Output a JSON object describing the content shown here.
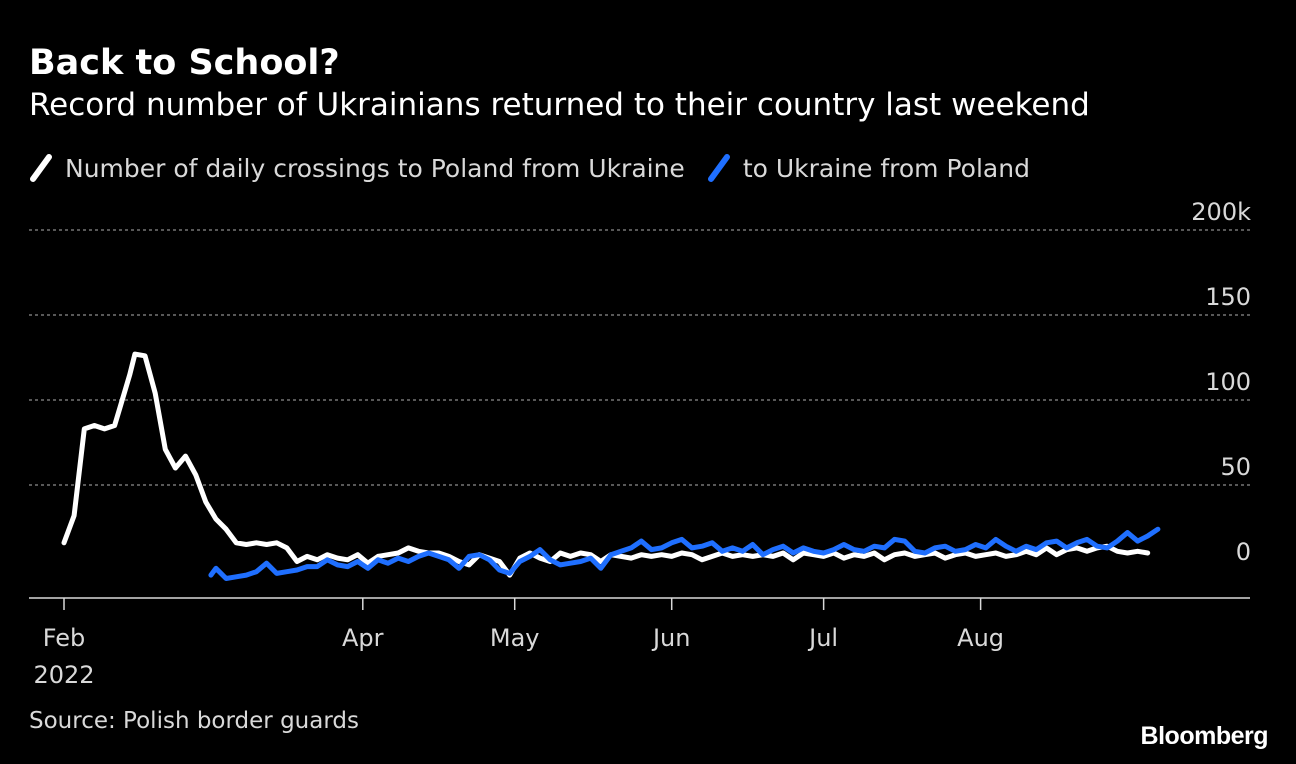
{
  "header": {
    "title": "Back to School?",
    "subtitle": "Record number of Ukrainians returned to their country last weekend"
  },
  "legend": {
    "items": [
      {
        "label": "Number of daily crossings to Poland from Ukraine",
        "color": "#ffffff"
      },
      {
        "label": "to Ukraine from Poland",
        "color": "#1f6fff"
      }
    ]
  },
  "footer": {
    "source": "Source: Polish border guards",
    "brand": "Bloomberg"
  },
  "chart_data": {
    "type": "line",
    "x_type": "date",
    "xlim": [
      "2022-02-01",
      "2022-09-07"
    ],
    "ylim": [
      0,
      200
    ],
    "grid": true,
    "y_ticks": [
      {
        "value": 0,
        "label": "0"
      },
      {
        "value": 50,
        "label": "50"
      },
      {
        "value": 100,
        "label": "100"
      },
      {
        "value": 150,
        "label": "150"
      },
      {
        "value": 200,
        "label": "200k"
      }
    ],
    "x_ticks": [
      {
        "date": "2022-02-01",
        "label": "Feb",
        "sublabel": "2022"
      },
      {
        "date": "2022-04-01",
        "label": "Apr"
      },
      {
        "date": "2022-05-01",
        "label": "May"
      },
      {
        "date": "2022-06-01",
        "label": "Jun"
      },
      {
        "date": "2022-07-01",
        "label": "Jul"
      },
      {
        "date": "2022-08-01",
        "label": "Aug"
      }
    ],
    "series": [
      {
        "name": "Number of daily crossings to Poland from Ukraine",
        "color": "#ffffff",
        "points": [
          [
            "2022-02-01",
            16
          ],
          [
            "2022-02-03",
            32
          ],
          [
            "2022-02-05",
            83
          ],
          [
            "2022-02-07",
            85
          ],
          [
            "2022-02-09",
            83
          ],
          [
            "2022-02-11",
            85
          ],
          [
            "2022-02-12",
            95
          ],
          [
            "2022-02-14",
            115
          ],
          [
            "2022-02-15",
            127
          ],
          [
            "2022-02-17",
            126
          ],
          [
            "2022-02-19",
            104
          ],
          [
            "2022-02-21",
            71
          ],
          [
            "2022-02-23",
            60
          ],
          [
            "2022-02-25",
            67
          ],
          [
            "2022-02-27",
            56
          ],
          [
            "2022-03-01",
            40
          ],
          [
            "2022-03-03",
            30
          ],
          [
            "2022-03-05",
            24
          ],
          [
            "2022-03-07",
            16
          ],
          [
            "2022-03-09",
            15
          ],
          [
            "2022-03-11",
            16
          ],
          [
            "2022-03-13",
            15
          ],
          [
            "2022-03-15",
            16
          ],
          [
            "2022-03-17",
            13
          ],
          [
            "2022-03-19",
            5
          ],
          [
            "2022-03-21",
            8
          ],
          [
            "2022-03-23",
            6
          ],
          [
            "2022-03-25",
            9
          ],
          [
            "2022-03-27",
            7
          ],
          [
            "2022-03-29",
            6
          ],
          [
            "2022-03-31",
            9
          ],
          [
            "2022-04-02",
            4
          ],
          [
            "2022-04-04",
            8
          ],
          [
            "2022-04-06",
            9
          ],
          [
            "2022-04-08",
            10
          ],
          [
            "2022-04-10",
            13
          ],
          [
            "2022-04-12",
            11
          ],
          [
            "2022-04-14",
            10
          ],
          [
            "2022-04-16",
            10
          ],
          [
            "2022-04-18",
            8
          ],
          [
            "2022-04-20",
            5
          ],
          [
            "2022-04-22",
            3
          ],
          [
            "2022-04-24",
            9
          ],
          [
            "2022-04-26",
            7
          ],
          [
            "2022-04-28",
            5
          ],
          [
            "2022-04-30",
            -3
          ],
          [
            "2022-05-02",
            7
          ],
          [
            "2022-05-04",
            10
          ],
          [
            "2022-05-06",
            7
          ],
          [
            "2022-05-08",
            5
          ],
          [
            "2022-05-10",
            10
          ],
          [
            "2022-05-12",
            8
          ],
          [
            "2022-05-14",
            10
          ],
          [
            "2022-05-16",
            9
          ],
          [
            "2022-05-18",
            5
          ],
          [
            "2022-05-20",
            9
          ],
          [
            "2022-05-22",
            8
          ],
          [
            "2022-05-24",
            7
          ],
          [
            "2022-05-26",
            9
          ],
          [
            "2022-05-28",
            8
          ],
          [
            "2022-05-30",
            9
          ],
          [
            "2022-06-01",
            8
          ],
          [
            "2022-06-03",
            10
          ],
          [
            "2022-06-05",
            9
          ],
          [
            "2022-06-07",
            6
          ],
          [
            "2022-06-09",
            8
          ],
          [
            "2022-06-11",
            10
          ],
          [
            "2022-06-13",
            8
          ],
          [
            "2022-06-15",
            9
          ],
          [
            "2022-06-17",
            8
          ],
          [
            "2022-06-19",
            9
          ],
          [
            "2022-06-21",
            8
          ],
          [
            "2022-06-23",
            10
          ],
          [
            "2022-06-25",
            6
          ],
          [
            "2022-06-27",
            10
          ],
          [
            "2022-06-29",
            9
          ],
          [
            "2022-07-01",
            8
          ],
          [
            "2022-07-03",
            10
          ],
          [
            "2022-07-05",
            7
          ],
          [
            "2022-07-07",
            9
          ],
          [
            "2022-07-09",
            8
          ],
          [
            "2022-07-11",
            10
          ],
          [
            "2022-07-13",
            6
          ],
          [
            "2022-07-15",
            9
          ],
          [
            "2022-07-17",
            10
          ],
          [
            "2022-07-19",
            8
          ],
          [
            "2022-07-21",
            9
          ],
          [
            "2022-07-23",
            10
          ],
          [
            "2022-07-25",
            7
          ],
          [
            "2022-07-27",
            9
          ],
          [
            "2022-07-29",
            10
          ],
          [
            "2022-07-31",
            8
          ],
          [
            "2022-08-02",
            9
          ],
          [
            "2022-08-04",
            10
          ],
          [
            "2022-08-06",
            8
          ],
          [
            "2022-08-08",
            9
          ],
          [
            "2022-08-10",
            11
          ],
          [
            "2022-08-12",
            9
          ],
          [
            "2022-08-14",
            13
          ],
          [
            "2022-08-16",
            9
          ],
          [
            "2022-08-18",
            12
          ],
          [
            "2022-08-20",
            13
          ],
          [
            "2022-08-22",
            11
          ],
          [
            "2022-08-24",
            13
          ],
          [
            "2022-08-26",
            14
          ],
          [
            "2022-08-28",
            11
          ],
          [
            "2022-08-30",
            10
          ],
          [
            "2022-09-01",
            11
          ],
          [
            "2022-09-03",
            10
          ]
        ]
      },
      {
        "name": "to Ukraine from Poland",
        "color": "#1f6fff",
        "points": [
          [
            "2022-03-02",
            -3
          ],
          [
            "2022-03-03",
            1
          ],
          [
            "2022-03-05",
            -5
          ],
          [
            "2022-03-07",
            -4
          ],
          [
            "2022-03-09",
            -3
          ],
          [
            "2022-03-11",
            -1
          ],
          [
            "2022-03-13",
            4
          ],
          [
            "2022-03-15",
            -2
          ],
          [
            "2022-03-17",
            -1
          ],
          [
            "2022-03-19",
            0
          ],
          [
            "2022-03-21",
            2
          ],
          [
            "2022-03-23",
            2
          ],
          [
            "2022-03-25",
            6
          ],
          [
            "2022-03-27",
            3
          ],
          [
            "2022-03-29",
            2
          ],
          [
            "2022-03-31",
            5
          ],
          [
            "2022-04-02",
            1
          ],
          [
            "2022-04-04",
            6
          ],
          [
            "2022-04-06",
            4
          ],
          [
            "2022-04-08",
            7
          ],
          [
            "2022-04-10",
            5
          ],
          [
            "2022-04-12",
            8
          ],
          [
            "2022-04-14",
            10
          ],
          [
            "2022-04-16",
            8
          ],
          [
            "2022-04-18",
            6
          ],
          [
            "2022-04-20",
            1
          ],
          [
            "2022-04-22",
            8
          ],
          [
            "2022-04-24",
            9
          ],
          [
            "2022-04-26",
            6
          ],
          [
            "2022-04-28",
            0
          ],
          [
            "2022-04-30",
            -2
          ],
          [
            "2022-05-02",
            5
          ],
          [
            "2022-05-04",
            8
          ],
          [
            "2022-05-06",
            12
          ],
          [
            "2022-05-08",
            6
          ],
          [
            "2022-05-10",
            3
          ],
          [
            "2022-05-12",
            4
          ],
          [
            "2022-05-14",
            5
          ],
          [
            "2022-05-16",
            7
          ],
          [
            "2022-05-18",
            1
          ],
          [
            "2022-05-20",
            9
          ],
          [
            "2022-05-22",
            11
          ],
          [
            "2022-05-24",
            13
          ],
          [
            "2022-05-26",
            17
          ],
          [
            "2022-05-28",
            12
          ],
          [
            "2022-05-30",
            13
          ],
          [
            "2022-06-01",
            16
          ],
          [
            "2022-06-03",
            18
          ],
          [
            "2022-06-05",
            13
          ],
          [
            "2022-06-07",
            14
          ],
          [
            "2022-06-09",
            16
          ],
          [
            "2022-06-11",
            11
          ],
          [
            "2022-06-13",
            13
          ],
          [
            "2022-06-15",
            11
          ],
          [
            "2022-06-17",
            15
          ],
          [
            "2022-06-19",
            9
          ],
          [
            "2022-06-21",
            12
          ],
          [
            "2022-06-23",
            14
          ],
          [
            "2022-06-25",
            10
          ],
          [
            "2022-06-27",
            13
          ],
          [
            "2022-06-29",
            11
          ],
          [
            "2022-07-01",
            10
          ],
          [
            "2022-07-03",
            12
          ],
          [
            "2022-07-05",
            15
          ],
          [
            "2022-07-07",
            12
          ],
          [
            "2022-07-09",
            11
          ],
          [
            "2022-07-11",
            14
          ],
          [
            "2022-07-13",
            13
          ],
          [
            "2022-07-15",
            18
          ],
          [
            "2022-07-17",
            17
          ],
          [
            "2022-07-19",
            11
          ],
          [
            "2022-07-21",
            10
          ],
          [
            "2022-07-23",
            13
          ],
          [
            "2022-07-25",
            14
          ],
          [
            "2022-07-27",
            11
          ],
          [
            "2022-07-29",
            12
          ],
          [
            "2022-07-31",
            15
          ],
          [
            "2022-08-02",
            13
          ],
          [
            "2022-08-04",
            18
          ],
          [
            "2022-08-06",
            14
          ],
          [
            "2022-08-08",
            11
          ],
          [
            "2022-08-10",
            14
          ],
          [
            "2022-08-12",
            12
          ],
          [
            "2022-08-14",
            16
          ],
          [
            "2022-08-16",
            17
          ],
          [
            "2022-08-18",
            13
          ],
          [
            "2022-08-20",
            16
          ],
          [
            "2022-08-22",
            18
          ],
          [
            "2022-08-24",
            14
          ],
          [
            "2022-08-26",
            13
          ],
          [
            "2022-08-28",
            17
          ],
          [
            "2022-08-30",
            22
          ],
          [
            "2022-09-01",
            17
          ],
          [
            "2022-09-03",
            20
          ],
          [
            "2022-09-05",
            24
          ]
        ]
      }
    ]
  }
}
